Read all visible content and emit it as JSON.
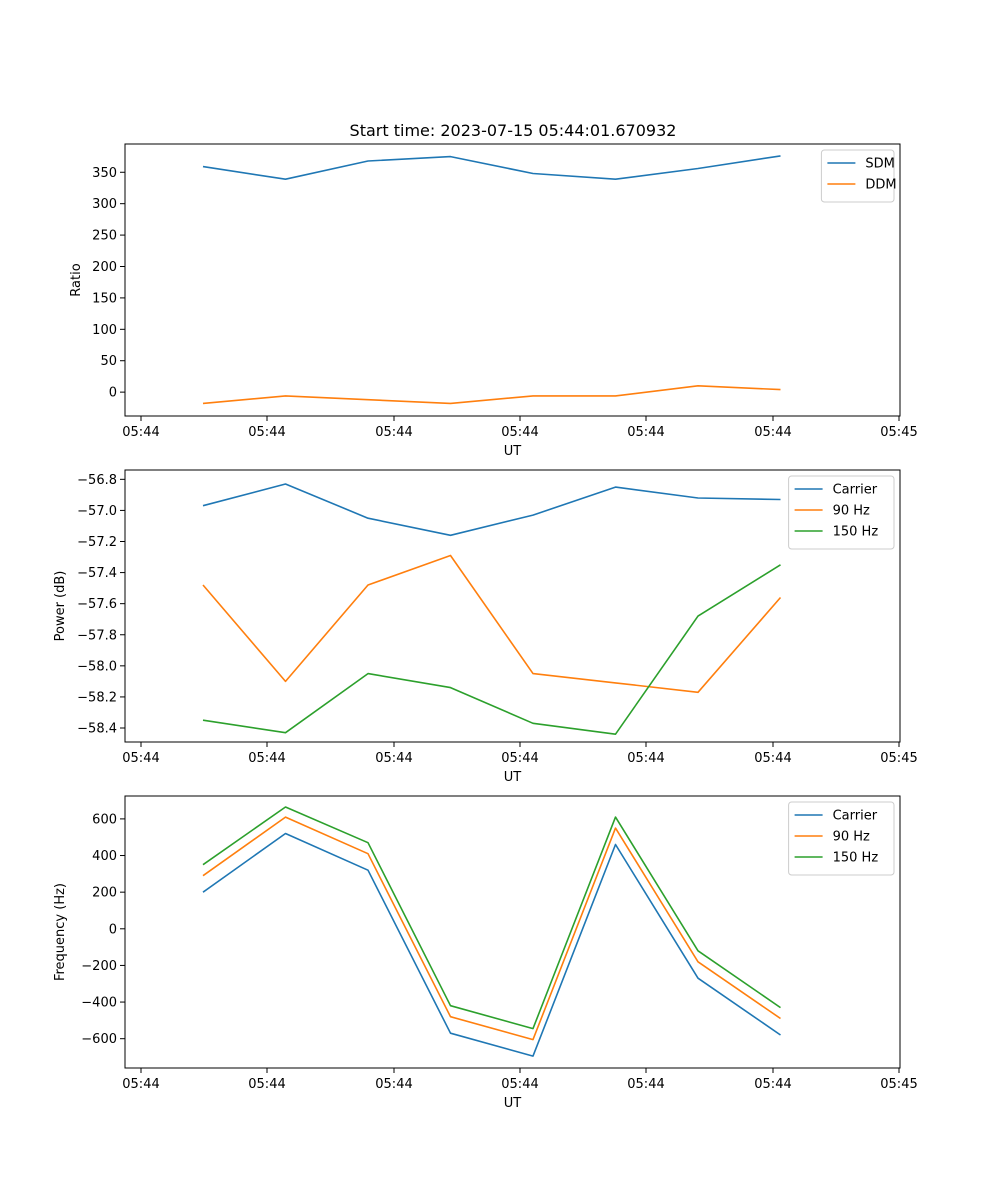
{
  "title": "Start time: 2023-07-15 05:44:01.670932",
  "colors": {
    "blue": "#1f77b4",
    "orange": "#ff7f0e",
    "green": "#2ca02c"
  },
  "x_ticks": [
    "05:44",
    "05:44",
    "05:44",
    "05:44",
    "05:44",
    "05:44",
    "05:45"
  ],
  "chart_data": [
    {
      "type": "line",
      "xlabel": "UT",
      "ylabel": "Ratio",
      "ylim": [
        -38,
        395
      ],
      "yticks": [
        0,
        50,
        100,
        150,
        200,
        250,
        300,
        350
      ],
      "ytick_labels": [
        "0",
        "50",
        "100",
        "150",
        "200",
        "250",
        "300",
        "350"
      ],
      "legend": "upper right",
      "x_index": [
        0,
        1,
        2,
        3,
        4,
        5,
        6,
        7
      ],
      "series": [
        {
          "name": "SDM",
          "color": "#1f77b4",
          "values": [
            359,
            339,
            368,
            375,
            348,
            339,
            356,
            376
          ]
        },
        {
          "name": "DDM",
          "color": "#ff7f0e",
          "values": [
            -18,
            -6,
            -12,
            -18,
            -6,
            -6,
            10,
            4
          ]
        }
      ]
    },
    {
      "type": "line",
      "xlabel": "UT",
      "ylabel": "Power (dB)",
      "ylim": [
        -58.49,
        -56.74
      ],
      "yticks": [
        -56.8,
        -57.0,
        -57.2,
        -57.4,
        -57.6,
        -57.8,
        -58.0,
        -58.2,
        -58.4
      ],
      "ytick_labels": [
        "−56.8",
        "−57.0",
        "−57.2",
        "−57.4",
        "−57.6",
        "−57.8",
        "−58.0",
        "−58.2",
        "−58.4"
      ],
      "legend": "upper right",
      "x_index": [
        0,
        1,
        2,
        3,
        4,
        5,
        6,
        7
      ],
      "series": [
        {
          "name": "Carrier",
          "color": "#1f77b4",
          "values": [
            -56.97,
            -56.83,
            -57.05,
            -57.16,
            -57.03,
            -56.85,
            -56.92,
            -56.93
          ]
        },
        {
          "name": "90 Hz",
          "color": "#ff7f0e",
          "values": [
            -57.48,
            -58.1,
            -57.48,
            -57.29,
            -58.05,
            -58.11,
            -58.17,
            -57.56
          ]
        },
        {
          "name": "150 Hz",
          "color": "#2ca02c",
          "values": [
            -58.35,
            -58.43,
            -58.05,
            -58.14,
            -58.37,
            -58.44,
            -57.68,
            -57.35
          ]
        }
      ]
    },
    {
      "type": "line",
      "xlabel": "UT",
      "ylabel": "Frequency (Hz)",
      "ylim": [
        -760,
        725
      ],
      "yticks": [
        -600,
        -400,
        -200,
        0,
        200,
        400,
        600
      ],
      "ytick_labels": [
        "−600",
        "−400",
        "−200",
        "0",
        "200",
        "400",
        "600"
      ],
      "legend": "upper right",
      "x_index": [
        0,
        1,
        2,
        3,
        4,
        5,
        6,
        7
      ],
      "series": [
        {
          "name": "Carrier",
          "color": "#1f77b4",
          "values": [
            200,
            520,
            320,
            -570,
            -695,
            460,
            -270,
            -580
          ]
        },
        {
          "name": "90 Hz",
          "color": "#ff7f0e",
          "values": [
            290,
            610,
            410,
            -480,
            -605,
            550,
            -180,
            -490
          ]
        },
        {
          "name": "150 Hz",
          "color": "#2ca02c",
          "values": [
            350,
            665,
            470,
            -420,
            -545,
            610,
            -120,
            -430
          ]
        }
      ]
    }
  ]
}
